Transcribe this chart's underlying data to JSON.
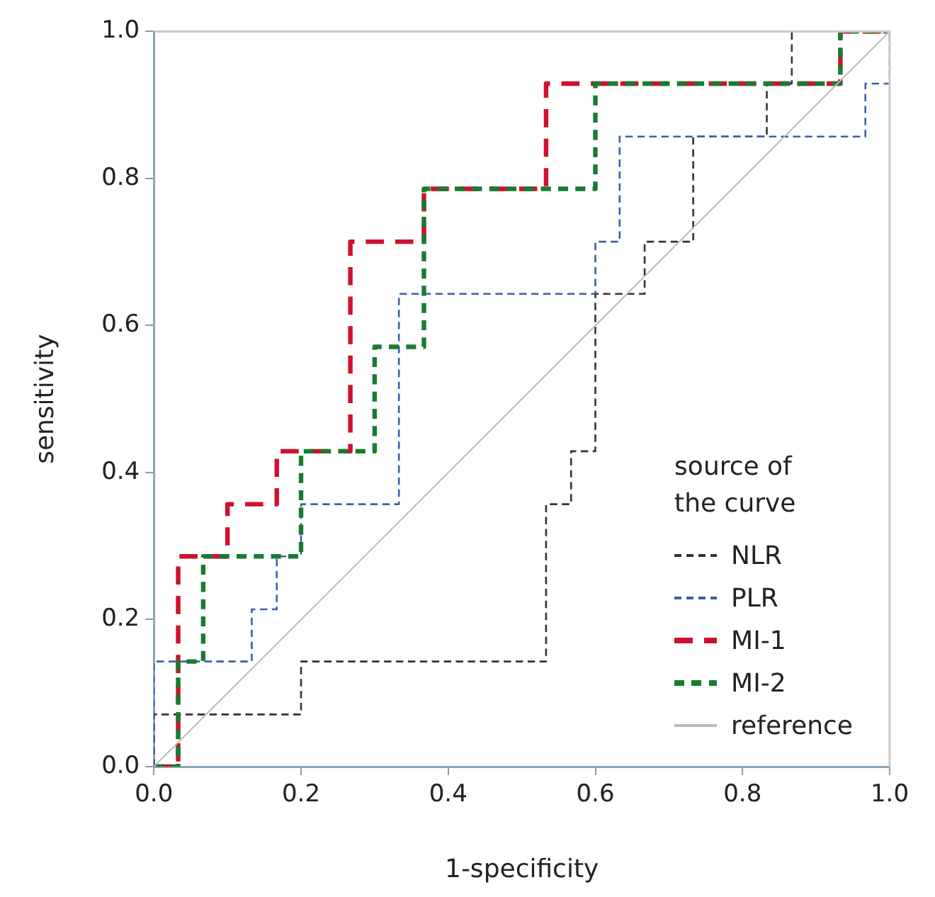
{
  "chart_data": {
    "type": "line",
    "xlabel": "1-specificity",
    "ylabel": "sensitivity",
    "legend_title": "source of the curve",
    "legend": "bottom right",
    "xlim": [
      0,
      1
    ],
    "ylim": [
      0,
      1
    ],
    "xticks": [
      {
        "value": 0,
        "label": "0.0"
      },
      {
        "value": 0.2,
        "label": "0.2"
      },
      {
        "value": 0.4,
        "label": "0.4"
      },
      {
        "value": 0.6,
        "label": "0.6"
      },
      {
        "value": 0.8,
        "label": "0.8"
      },
      {
        "value": 1,
        "label": "1.0"
      }
    ],
    "yticks": [
      {
        "value": 0,
        "label": "0.0"
      },
      {
        "value": 0.2,
        "label": "0.2"
      },
      {
        "value": 0.4,
        "label": "0.4"
      },
      {
        "value": 0.6,
        "label": "0.6"
      },
      {
        "value": 0.8,
        "label": "0.8"
      },
      {
        "value": 1,
        "label": "1.0"
      }
    ],
    "grid": false,
    "marker": "none",
    "series": [
      {
        "name": "NLR",
        "color": "#333333",
        "line_style": "dashed",
        "x": [
          0,
          0,
          0.2,
          0.2,
          0.533,
          0.533,
          0.567,
          0.567,
          0.6,
          0.6,
          0.667,
          0.667,
          0.733,
          0.733,
          0.833,
          0.833,
          0.867,
          0.867,
          1
        ],
        "values": [
          0,
          0.071,
          0.071,
          0.143,
          0.143,
          0.357,
          0.357,
          0.429,
          0.429,
          0.643,
          0.643,
          0.714,
          0.714,
          0.857,
          0.857,
          0.929,
          0.929,
          1,
          1
        ]
      },
      {
        "name": "PLR",
        "color": "#3a5fa8",
        "line_style": "dashed",
        "x": [
          0,
          0,
          0.133,
          0.133,
          0.167,
          0.167,
          0.2,
          0.2,
          0.333,
          0.333,
          0.6,
          0.6,
          0.633,
          0.633,
          0.967,
          0.967,
          1,
          1
        ],
        "values": [
          0,
          0.143,
          0.143,
          0.214,
          0.214,
          0.286,
          0.286,
          0.357,
          0.357,
          0.643,
          0.643,
          0.714,
          0.714,
          0.857,
          0.857,
          0.929,
          0.929,
          1
        ]
      },
      {
        "name": "MI-1",
        "color": "#d0102f",
        "line_style": "dashed",
        "x": [
          0,
          0.033,
          0.033,
          0.1,
          0.1,
          0.167,
          0.167,
          0.267,
          0.267,
          0.367,
          0.367,
          0.533,
          0.533,
          0.933,
          0.933,
          1
        ],
        "values": [
          0,
          0,
          0.286,
          0.286,
          0.357,
          0.357,
          0.429,
          0.429,
          0.714,
          0.714,
          0.786,
          0.786,
          0.929,
          0.929,
          1,
          1
        ]
      },
      {
        "name": "MI-2",
        "color": "#1a7a30",
        "line_style": "dotted",
        "x": [
          0,
          0.033,
          0.033,
          0.067,
          0.067,
          0.2,
          0.2,
          0.3,
          0.3,
          0.367,
          0.367,
          0.6,
          0.6,
          0.933,
          0.933,
          1
        ],
        "values": [
          0,
          0,
          0.143,
          0.143,
          0.286,
          0.286,
          0.429,
          0.429,
          0.571,
          0.571,
          0.786,
          0.786,
          0.929,
          0.929,
          1,
          1
        ]
      },
      {
        "name": "reference",
        "color": "#bbbbbb",
        "line_style": "solid",
        "x": [
          0,
          1
        ],
        "values": [
          0,
          1
        ]
      }
    ]
  }
}
